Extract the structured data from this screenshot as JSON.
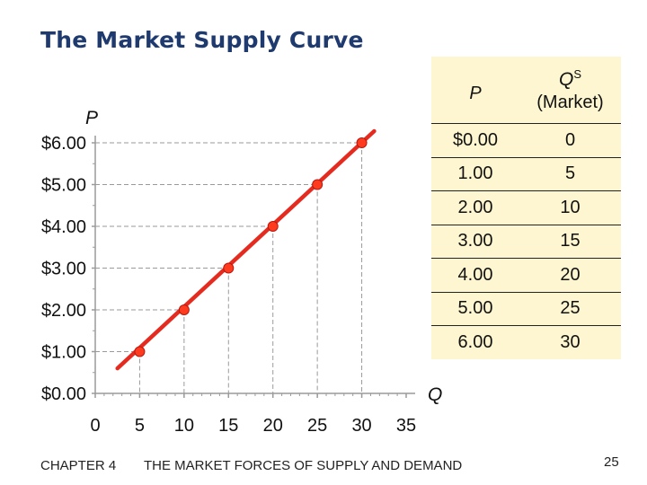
{
  "title": "The Market Supply Curve",
  "chart_data": {
    "type": "line",
    "ylabel": "P",
    "xlabel": "Q",
    "xlim": [
      0,
      35
    ],
    "ylim": [
      0,
      6
    ],
    "x_ticks": [
      "0",
      "5",
      "10",
      "15",
      "20",
      "25",
      "30",
      "35"
    ],
    "y_ticks": [
      "$0.00",
      "$1.00",
      "$2.00",
      "$3.00",
      "$4.00",
      "$5.00",
      "$6.00"
    ],
    "series": [
      {
        "points": [
          {
            "x": 5,
            "y": 1
          },
          {
            "x": 10,
            "y": 2
          },
          {
            "x": 15,
            "y": 3
          },
          {
            "x": 20,
            "y": 4
          },
          {
            "x": 25,
            "y": 5
          },
          {
            "x": 30,
            "y": 6
          }
        ],
        "line_extends_from": {
          "x": 2.5,
          "y": 0.6
        },
        "line_color": "#e52b1f",
        "marker_color": "#ff3b1f"
      }
    ],
    "grid": "dashed drop lines to axes at each point"
  },
  "table": {
    "header_p": "P",
    "header_q": "Q",
    "header_q_sup": "S",
    "header_q_sub": "(Market)",
    "rows": [
      {
        "p": "$0.00",
        "q": "0"
      },
      {
        "p": "1.00",
        "q": "5"
      },
      {
        "p": "2.00",
        "q": "10"
      },
      {
        "p": "3.00",
        "q": "15"
      },
      {
        "p": "4.00",
        "q": "20"
      },
      {
        "p": "5.00",
        "q": "25"
      },
      {
        "p": "6.00",
        "q": "30"
      }
    ]
  },
  "footer": {
    "chapter": "CHAPTER 4",
    "subject": "THE MARKET FORCES OF SUPPLY AND DEMAND",
    "page": "25"
  }
}
